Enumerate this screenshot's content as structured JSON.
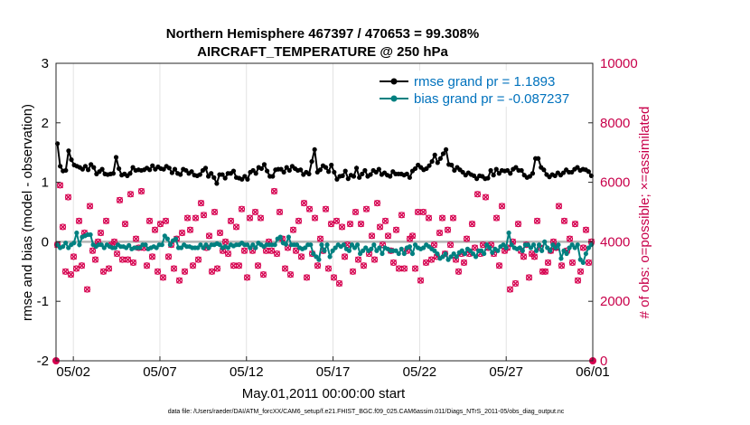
{
  "chart_data": {
    "type": "line",
    "title_line1": "Northern Hemisphere 467397 / 470653 = 99.308%",
    "title_line2": "AIRCRAFT_TEMPERATURE @ 250 hPa",
    "xlabel": "May.01,2011 00:00:00 start",
    "ylabel_left": "rmse and bias (model - observation)",
    "ylabel_right": "# of obs: o=possible; ×=assimilated",
    "footer": "data file: /Users/raeder/DAI/ATM_forcXX/CAM6_setup/f.e21.FHIST_BGC.f09_025.CAM6assim.011/Diags_NTrS_2011-05/obs_diag_output.nc",
    "xlim": [
      0,
      31
    ],
    "ylim_left": [
      -2,
      3
    ],
    "ylim_right": [
      0,
      10000
    ],
    "xticks": [
      {
        "x": 1,
        "label": "05/02"
      },
      {
        "x": 6,
        "label": "05/07"
      },
      {
        "x": 11,
        "label": "05/12"
      },
      {
        "x": 16,
        "label": "05/17"
      },
      {
        "x": 21,
        "label": "05/22"
      },
      {
        "x": 26,
        "label": "05/27"
      },
      {
        "x": 31,
        "label": "06/01"
      }
    ],
    "yticks_left": [
      -2,
      -1,
      0,
      1,
      2,
      3
    ],
    "yticks_right": [
      0,
      2000,
      4000,
      6000,
      8000,
      10000
    ],
    "grid": "vertical",
    "legend_location": "top-right",
    "colors": {
      "rmse": "#000000",
      "bias": "#008080",
      "obs": "#d6004f",
      "zero_line": "#b4b4b4"
    },
    "series": [
      {
        "name": "rmse grand pr = 1.1893",
        "key": "rmse",
        "values": [
          1.65,
          1.27,
          1.19,
          1.2,
          1.53,
          1.38,
          1.29,
          1.27,
          1.25,
          1.22,
          1.27,
          1.21,
          1.3,
          1.25,
          1.14,
          1.18,
          1.22,
          1.14,
          1.13,
          1.14,
          1.15,
          1.42,
          1.23,
          1.12,
          1.14,
          1.11,
          1.15,
          1.25,
          1.2,
          1.21,
          1.2,
          1.21,
          1.24,
          1.21,
          1.28,
          1.22,
          1.26,
          1.23,
          1.22,
          1.27,
          1.24,
          1.16,
          1.22,
          1.15,
          1.13,
          1.22,
          1.2,
          1.15,
          1.18,
          1.12,
          1.11,
          1.13,
          1.2,
          1.24,
          1.1,
          1.15,
          1.08,
          0.98,
          1.13,
          1.13,
          1.07,
          1.15,
          1.15,
          1.19,
          1.08,
          1.07,
          1.05,
          1.1,
          1.05,
          1.17,
          1.2,
          1.15,
          1.25,
          1.23,
          1.3,
          1.19,
          1.1,
          1.1,
          1.21,
          1.22,
          1.22,
          1.17,
          1.25,
          1.2,
          1.27,
          1.23,
          1.2,
          1.21,
          1.13,
          1.17,
          1.14,
          1.35,
          1.55,
          1.17,
          1.21,
          1.28,
          1.25,
          1.18,
          1.29,
          1.17,
          1.05,
          1.1,
          1.11,
          1.19,
          1.06,
          1.12,
          1.1,
          1.24,
          1.08,
          1.14,
          1.2,
          1.1,
          1.13,
          1.2,
          1.17,
          1.22,
          1.13,
          1.16,
          1.12,
          1.1,
          1.18,
          1.14,
          1.14,
          1.14,
          1.12,
          1.14,
          1.08,
          1.19,
          1.23,
          1.29,
          1.25,
          1.21,
          1.23,
          1.28,
          1.35,
          1.46,
          1.33,
          1.4,
          1.48,
          1.55,
          1.3,
          1.29,
          1.2,
          1.25,
          1.21,
          1.17,
          1.12,
          1.16,
          1.13,
          1.11,
          1.06,
          1.11,
          1.1,
          1.06,
          1.07,
          1.2,
          1.12,
          1.22,
          1.15,
          1.2,
          1.19,
          1.2,
          1.15,
          1.22,
          1.25,
          1.2,
          1.2,
          1.12,
          1.08,
          1.1,
          1.15,
          1.4,
          1.4,
          1.25,
          1.21,
          1.13,
          1.09,
          1.13,
          1.11,
          1.16,
          1.12,
          1.16,
          1.21,
          1.17,
          1.17,
          1.22,
          1.25,
          1.2,
          1.22,
          1.21,
          1.18,
          1.11
        ]
      },
      {
        "name": "bias grand pr = -0.087237",
        "key": "bias",
        "values": [
          -0.05,
          -0.1,
          -0.08,
          -0.02,
          -0.1,
          -0.05,
          -0.02,
          0.15,
          -0.05,
          0.08,
          0.1,
          0.12,
          0.12,
          -0.05,
          -0.08,
          -0.05,
          -0.05,
          -0.1,
          -0.05,
          -0.08,
          -0.1,
          -0.1,
          -0.05,
          -0.08,
          -0.08,
          -0.1,
          -0.06,
          -0.12,
          -0.1,
          -0.1,
          -0.1,
          -0.05,
          -0.05,
          -0.12,
          -0.1,
          -0.08,
          -0.1,
          -0.05,
          -0.05,
          0.1,
          0.05,
          -0.05,
          0.02,
          0.05,
          -0.1,
          -0.1,
          -0.05,
          -0.08,
          -0.08,
          -0.1,
          -0.1,
          -0.1,
          -0.05,
          -0.1,
          -0.05,
          -0.1,
          -0.05,
          -0.05,
          -0.03,
          -0.05,
          -0.1,
          -0.08,
          -0.1,
          -0.05,
          -0.07,
          -0.05,
          -0.05,
          -0.02,
          -0.05,
          -0.05,
          -0.1,
          -0.05,
          -0.1,
          -0.02,
          -0.05,
          -0.08,
          -0.05,
          -0.05,
          -0.05,
          -0.05,
          0.05,
          0.08,
          -0.02,
          -0.04,
          0.08,
          -0.05,
          -0.05,
          -0.05,
          -0.1,
          -0.12,
          -0.1,
          -0.05,
          -0.05,
          -0.2,
          -0.25,
          -0.3,
          -0.05,
          -0.15,
          -0.05,
          -0.25,
          -0.15,
          -0.1,
          -0.05,
          -0.08,
          -0.05,
          -0.12,
          -0.15,
          -0.05,
          -0.1,
          -0.05,
          -0.2,
          -0.15,
          -0.1,
          -0.15,
          -0.12,
          -0.05,
          -0.15,
          -0.1,
          -0.2,
          -0.1,
          -0.12,
          -0.15,
          -0.15,
          -0.15,
          -0.2,
          -0.12,
          -0.2,
          -0.1,
          -0.08,
          -0.2,
          -0.05,
          -0.1,
          -0.12,
          -0.1,
          -0.05,
          -0.08,
          -0.12,
          -0.15,
          -0.2,
          -0.28,
          -0.25,
          -0.2,
          -0.3,
          -0.25,
          -0.2,
          -0.25,
          -0.18,
          -0.15,
          -0.2,
          -0.12,
          -0.15,
          -0.2,
          -0.25,
          -0.15,
          -0.15,
          -0.2,
          -0.05,
          -0.1,
          -0.18,
          -0.12,
          -0.15,
          -0.08,
          -0.05,
          -0.1,
          0.15,
          -0.05,
          -0.1,
          -0.12,
          -0.1,
          -0.15,
          -0.05,
          -0.05,
          -0.1,
          -0.05,
          -0.15,
          -0.05,
          -0.15,
          0.0,
          -0.1,
          -0.15,
          -0.05,
          -0.1,
          -0.05,
          -0.28,
          -0.15,
          -0.2,
          -0.1,
          -0.05,
          -0.1,
          -0.05,
          -0.3,
          -0.35,
          -0.2,
          -0.1,
          -0.05
        ]
      },
      {
        "name": "# of obs possible (o) / assimilated (x)",
        "key": "obs",
        "values": [
          3900,
          5900,
          4500,
          3000,
          5500,
          2900,
          3500,
          3100,
          4700,
          3200,
          4300,
          2400,
          5200,
          3700,
          3400,
          4000,
          4300,
          3000,
          4700,
          3100,
          3900,
          4000,
          3600,
          5400,
          3400,
          4600,
          3400,
          5600,
          3300,
          4100,
          3800,
          5700,
          3800,
          3200,
          4700,
          3500,
          4400,
          3000,
          4600,
          2800,
          4700,
          3500,
          3900,
          3100,
          4100,
          2700,
          4300,
          3000,
          4800,
          4400,
          3200,
          4800,
          3400,
          5300,
          4900,
          3800,
          4200,
          3000,
          5000,
          3100,
          4300,
          3700,
          4000,
          3600,
          4700,
          3200,
          4500,
          3200,
          5100,
          3700,
          2800,
          4800,
          3700,
          5000,
          3200,
          4800,
          2900,
          3700,
          4000,
          3700,
          5700,
          3600,
          5000,
          4100,
          3100,
          3800,
          2900,
          4400,
          3700,
          4700,
          3500,
          5300,
          2800,
          5100,
          3600,
          4800,
          3200,
          4100,
          3700,
          5100,
          3100,
          4600,
          2800,
          4700,
          2600,
          4500,
          3500,
          3900,
          4600,
          3000,
          5000,
          3400,
          4600,
          3200,
          5100,
          3600,
          4200,
          3400,
          5300,
          4500,
          3900,
          4700,
          4200,
          3700,
          3300,
          4400,
          3100,
          4900,
          3100,
          3700,
          4100,
          4200,
          3100,
          5000,
          2700,
          5000,
          3300,
          4800,
          3400,
          3900,
          3500,
          4300,
          4800,
          3600,
          4400,
          3900,
          4800,
          3400,
          3000,
          3600,
          3300,
          4100,
          3600,
          4600,
          3800,
          5600,
          3600,
          3900,
          5500,
          3800,
          3900,
          3600,
          4800,
          3200,
          5200,
          3700,
          3800,
          2400,
          4000,
          2600,
          4600,
          3700,
          3500,
          3900,
          2800,
          3600,
          3500,
          4700,
          3800,
          3000,
          3000,
          3300,
          3700,
          4000,
          3800,
          5200,
          3200,
          4700,
          3700,
          4100,
          3300,
          4600,
          2700,
          3000,
          3800,
          4400,
          3300,
          4000
        ]
      }
    ]
  }
}
